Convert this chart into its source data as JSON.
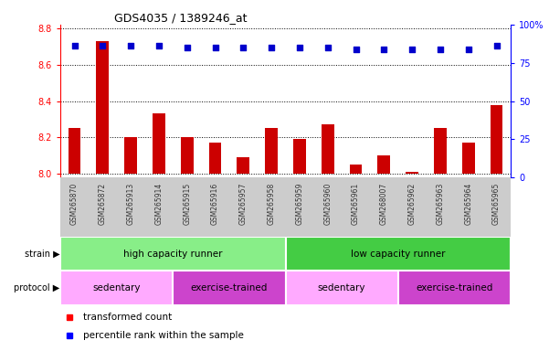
{
  "title": "GDS4035 / 1389246_at",
  "samples": [
    "GSM265870",
    "GSM265872",
    "GSM265913",
    "GSM265914",
    "GSM265915",
    "GSM265916",
    "GSM265957",
    "GSM265958",
    "GSM265959",
    "GSM265960",
    "GSM265961",
    "GSM268007",
    "GSM265962",
    "GSM265963",
    "GSM265964",
    "GSM265965"
  ],
  "bar_values": [
    8.25,
    8.73,
    8.2,
    8.33,
    8.2,
    8.17,
    8.09,
    8.25,
    8.19,
    8.27,
    8.05,
    8.1,
    8.01,
    8.25,
    8.17,
    8.38
  ],
  "dot_values": [
    86,
    86,
    86,
    86,
    85,
    85,
    85,
    85,
    85,
    85,
    84,
    84,
    84,
    84,
    84,
    86
  ],
  "ylim_left": [
    7.98,
    8.82
  ],
  "ylim_right": [
    0,
    100
  ],
  "yticks_left": [
    8.0,
    8.2,
    8.4,
    8.6,
    8.8
  ],
  "yticks_right": [
    0,
    25,
    50,
    75,
    100
  ],
  "bar_color": "#cc0000",
  "dot_color": "#0000cc",
  "bar_width": 0.45,
  "strain_groups": [
    {
      "label": "high capacity runner",
      "start": 0,
      "end": 8,
      "color": "#88ee88"
    },
    {
      "label": "low capacity runner",
      "start": 8,
      "end": 16,
      "color": "#44cc44"
    }
  ],
  "protocol_groups": [
    {
      "label": "sedentary",
      "start": 0,
      "end": 4,
      "color": "#ffaaff"
    },
    {
      "label": "exercise-trained",
      "start": 4,
      "end": 8,
      "color": "#cc44cc"
    },
    {
      "label": "sedentary",
      "start": 8,
      "end": 12,
      "color": "#ffaaff"
    },
    {
      "label": "exercise-trained",
      "start": 12,
      "end": 16,
      "color": "#cc44cc"
    }
  ],
  "strain_label": "strain",
  "protocol_label": "protocol",
  "legend_red_label": "transformed count",
  "legend_blue_label": "percentile rank within the sample",
  "fig_bg_color": "#ffffff",
  "plot_bg_color": "#ffffff",
  "xtick_bg_even": "#cccccc",
  "xtick_bg_odd": "#dddddd"
}
